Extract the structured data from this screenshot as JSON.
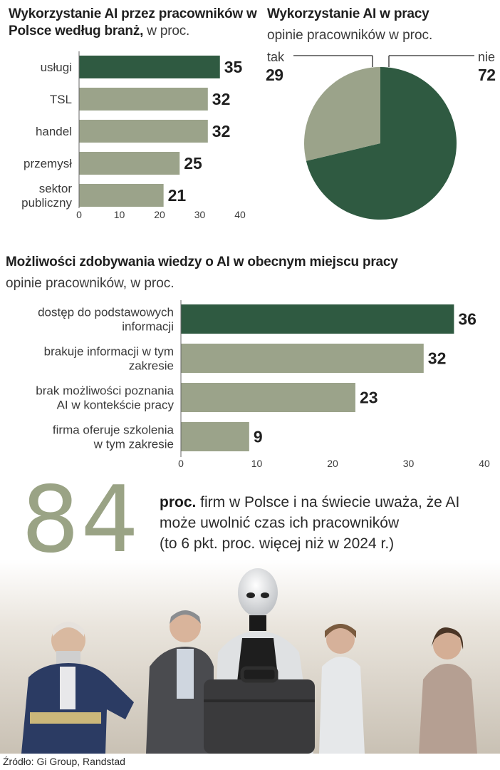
{
  "chart_data": [
    {
      "type": "bar",
      "orientation": "horizontal",
      "title": "Wykorzystanie AI przez pracowników w Polsce według branż,",
      "subtitle": "w proc.",
      "categories": [
        "usługi",
        "TSL",
        "handel",
        "przemysł",
        "sektor publiczny"
      ],
      "values": [
        35,
        32,
        32,
        25,
        21
      ],
      "xlim": [
        0,
        40
      ],
      "xticks": [
        0,
        10,
        20,
        30,
        40
      ],
      "highlight_index": 0,
      "grid": false
    },
    {
      "type": "pie",
      "title": "Wykorzystanie AI w pracy",
      "subtitle": "opinie pracowników w proc.",
      "slices": [
        {
          "label": "nie",
          "value": 72
        },
        {
          "label": "tak",
          "value": 29
        }
      ]
    },
    {
      "type": "bar",
      "orientation": "horizontal",
      "title": "Możliwości zdobywania wiedzy o AI w obecnym miejscu pracy",
      "subtitle": "opinie pracowników, w proc.",
      "categories": [
        "dostęp do podstawowych informacji",
        "brakuje informacji w tym zakresie",
        "brak możliwości poznania AI w kontekście pracy",
        "firma oferuje szkolenia w tym zakresie"
      ],
      "values": [
        36,
        32,
        23,
        9
      ],
      "xlim": [
        0,
        40
      ],
      "xticks": [
        0,
        10,
        20,
        30,
        40
      ],
      "highlight_index": 0,
      "grid": false
    }
  ],
  "chart1": {
    "title_bold": "Wykorzystanie AI przez pracowników w Polsce według branż,",
    "title_suffix": " w proc.",
    "cat_lines": [
      [
        "usługi"
      ],
      [
        "TSL"
      ],
      [
        "handel"
      ],
      [
        "przemysł"
      ],
      [
        "sektor",
        "publiczny"
      ]
    ]
  },
  "chart2": {
    "title": "Wykorzystanie AI w pracy",
    "subtitle": "opinie pracowników w proc.",
    "tak_label": "tak",
    "tak_value": "29",
    "nie_label": "nie",
    "nie_value": "72"
  },
  "chart3": {
    "title": "Możliwości zdobywania wiedzy o AI w obecnym miejscu pracy",
    "subtitle": "opinie pracowników, w proc.",
    "cat_lines": [
      [
        "dostęp do podstawowych",
        "informacji"
      ],
      [
        "brakuje informacji w tym",
        "zakresie"
      ],
      [
        "brak możliwości poznania",
        "AI w kontekście pracy"
      ],
      [
        "firma oferuje szkolenia",
        "w tym zakresie"
      ]
    ]
  },
  "stat": {
    "number": "84",
    "unit": "proc.",
    "text_line1": " firm w Polsce i na świecie uważa, że AI",
    "text_line2": "może uwolnić czas ich pracowników",
    "text_line3": "(to 6 pkt. proc. więcej niż w 2024 r.)"
  },
  "source": "Źródło: Gi Group, Randstad",
  "colors": {
    "highlight": "#2f5a41",
    "bar": "#9ba38a",
    "pie_dark": "#2f5a41",
    "pie_light": "#9ba38a",
    "big_number": "#9aa385"
  }
}
